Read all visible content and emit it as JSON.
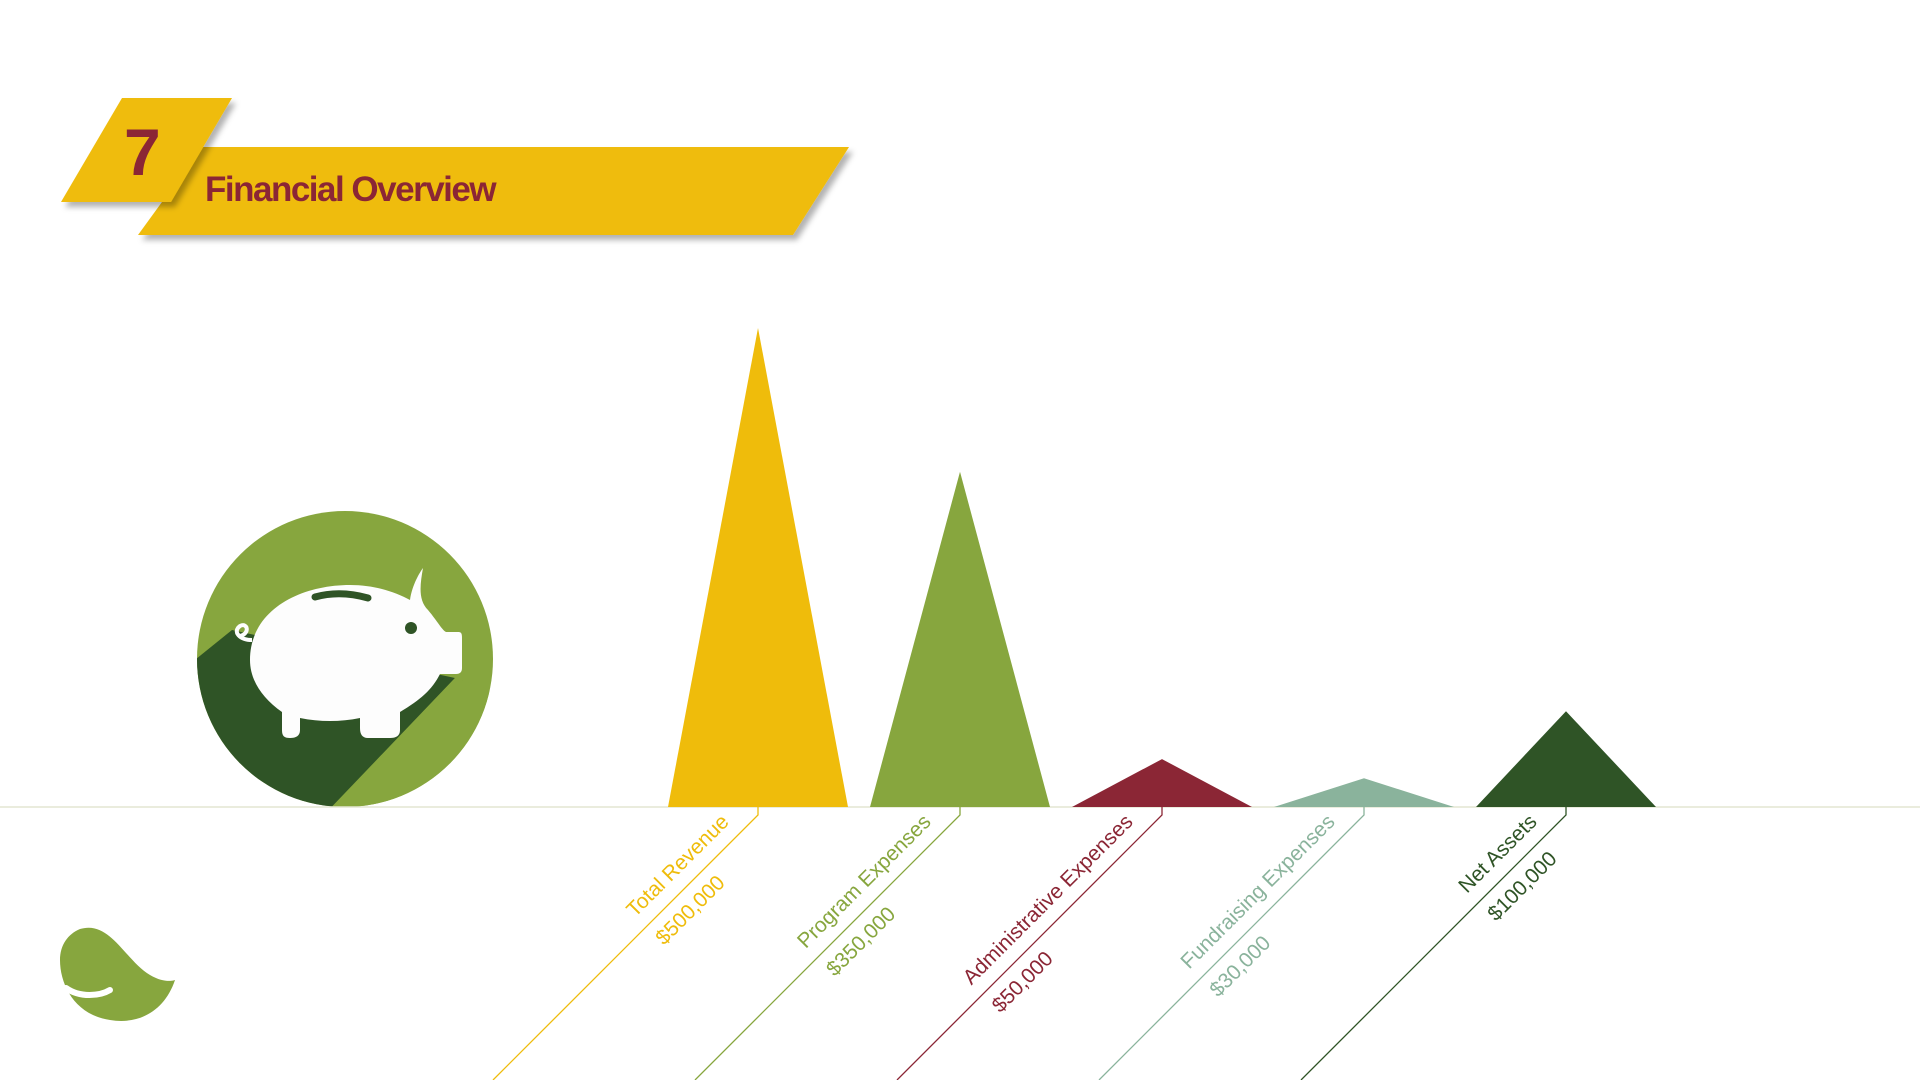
{
  "header": {
    "number": "7",
    "title": "Financial Overview"
  },
  "colors": {
    "yellow": "#EFBC0B",
    "green": "#87A63E",
    "maroon": "#8B2635",
    "sage": "#8AB39C",
    "dark_green": "#2F5426",
    "text_maroon": "#8B2635"
  },
  "icons": {
    "badge": "piggy-bank-icon",
    "logo": "leaf-logo-icon"
  },
  "chart_data": {
    "type": "bar",
    "mark": "triangle",
    "categories": [
      "Total Revenue",
      "Program Expenses",
      "Administrative Expenses",
      "Fundraising Expenses",
      "Net Assets"
    ],
    "values": [
      500000,
      350000,
      50000,
      30000,
      100000
    ],
    "value_labels": [
      "$500,000",
      "$350,000",
      "$50,000",
      "$30,000",
      "$100,000"
    ],
    "colors": [
      "#EFBC0B",
      "#87A63E",
      "#8B2635",
      "#8AB39C",
      "#2F5426"
    ],
    "ylim": [
      0,
      500000
    ],
    "grid": false,
    "legend": "none"
  }
}
